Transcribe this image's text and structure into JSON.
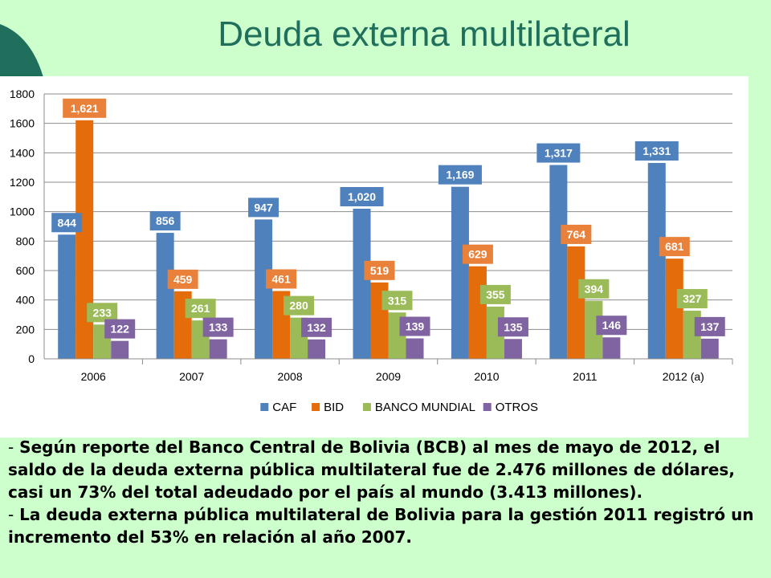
{
  "slide": {
    "title": "Deuda externa multilateral",
    "notes": [
      {
        "dash": "-",
        "text": " Según reporte del Banco Central de Bolivia (BCB) al mes de mayo de 2012, el saldo de la deuda externa pública multilateral fue de 2.476 millones de dólares, casi un 73% del total adeudado por el país al mundo (3.413 millones)."
      },
      {
        "dash": "-",
        "text": " La deuda externa pública multilateral de Bolivia para la gestión 2011 registró un incremento del 53% en relación al año 2007."
      }
    ]
  },
  "chart_data": {
    "type": "bar",
    "title": "",
    "xlabel": "",
    "ylabel": "",
    "categories": [
      "2006",
      "2007",
      "2008",
      "2009",
      "2010",
      "2011",
      "2012 (a)"
    ],
    "ylim": [
      0,
      1800
    ],
    "yticks": [
      0,
      200,
      400,
      600,
      800,
      1000,
      1200,
      1400,
      1600,
      1800
    ],
    "grid": true,
    "legend_position": "bottom",
    "series": [
      {
        "name": "CAF",
        "color": "#4f81bd",
        "label_color": "#4f81bd",
        "values": [
          844,
          856,
          947,
          1020,
          1169,
          1317,
          1331
        ],
        "labels": [
          "844",
          "856",
          "947",
          "1,020",
          "1,169",
          "1,317",
          "1,331"
        ]
      },
      {
        "name": "BID",
        "color": "#e46c0a",
        "label_color": "#e9813a",
        "values": [
          1621,
          459,
          461,
          519,
          629,
          764,
          681
        ],
        "labels": [
          "1,621",
          "459",
          "461",
          "519",
          "629",
          "764",
          "681"
        ]
      },
      {
        "name": "BANCO MUNDIAL",
        "color": "#9bbb59",
        "label_color": "#9bbb59",
        "values": [
          233,
          261,
          280,
          315,
          355,
          394,
          327
        ],
        "labels": [
          "233",
          "261",
          "280",
          "315",
          "355",
          "394",
          "327"
        ]
      },
      {
        "name": "OTROS",
        "color": "#8064a2",
        "label_color": "#8064a2",
        "values": [
          122,
          133,
          132,
          139,
          135,
          146,
          137
        ],
        "labels": [
          "122",
          "133",
          "132",
          "139",
          "135",
          "146",
          "137"
        ]
      }
    ]
  }
}
